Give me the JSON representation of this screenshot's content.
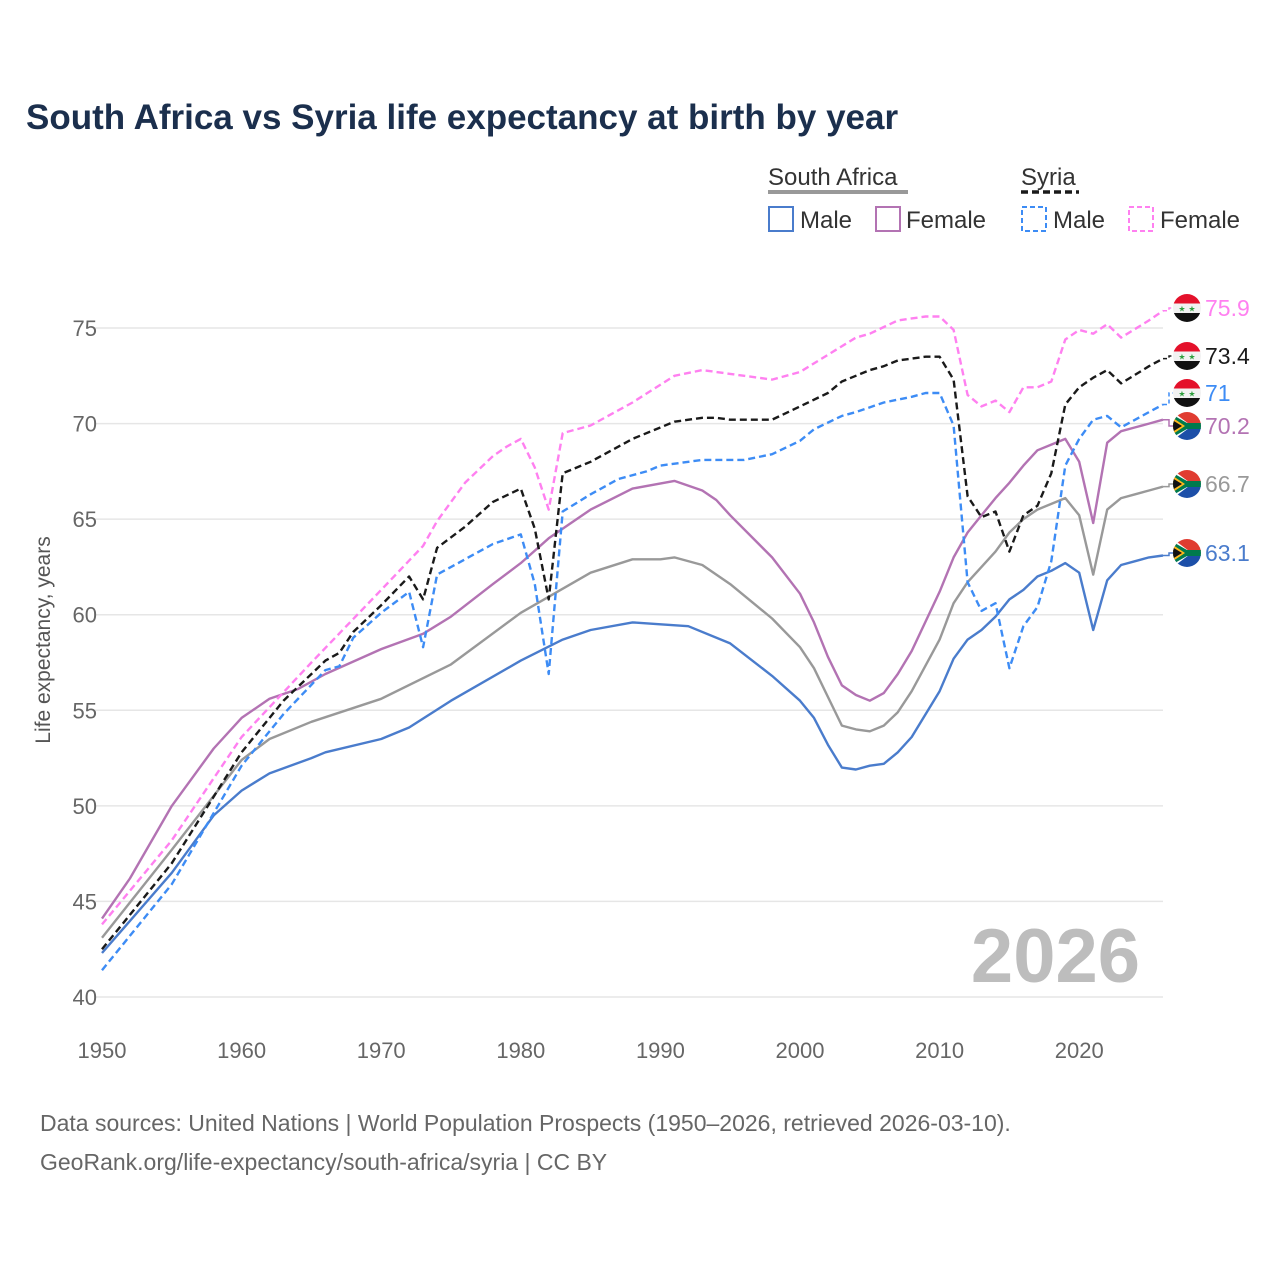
{
  "title": "South Africa vs Syria life expectancy at birth by year",
  "legend": {
    "groups": [
      {
        "label": "South Africa",
        "items": [
          "Male",
          "Female"
        ]
      },
      {
        "label": "Syria",
        "items": [
          "Male",
          "Female"
        ]
      }
    ]
  },
  "watermark_year": "2026",
  "source_line1": "Data sources: United Nations | World Population Prospects (1950–2026, retrieved 2026-03-10).",
  "source_line2": "GeoRank.org/life-expectancy/south-africa/syria | CC BY",
  "chart_data": {
    "type": "line",
    "title": "South Africa vs Syria life expectancy at birth by year",
    "xlabel": "",
    "ylabel": "Life expectancy, years",
    "xlim": [
      1950,
      2026
    ],
    "ylim": [
      40,
      77
    ],
    "x_ticks": [
      "1950",
      "1960",
      "1970",
      "1980",
      "1990",
      "2000",
      "2010",
      "2020"
    ],
    "y_ticks": [
      "40",
      "45",
      "50",
      "55",
      "60",
      "65",
      "70",
      "75"
    ],
    "grid": true,
    "legend_position": "top-right",
    "series": [
      {
        "name": "Syria Female",
        "country": "Syria",
        "color": "#ff80f0",
        "dashed": true,
        "end_label": "75.9",
        "points": [
          [
            1950,
            43.8
          ],
          [
            1955,
            48.2
          ],
          [
            1960,
            53.6
          ],
          [
            1965,
            57.5
          ],
          [
            1970,
            61.3
          ],
          [
            1973,
            63.6
          ],
          [
            1974,
            64.9
          ],
          [
            1976,
            66.9
          ],
          [
            1978,
            68.3
          ],
          [
            1979,
            68.8
          ],
          [
            1980,
            69.2
          ],
          [
            1981,
            67.7
          ],
          [
            1982,
            65.5
          ],
          [
            1983,
            69.5
          ],
          [
            1985,
            69.9
          ],
          [
            1988,
            71.1
          ],
          [
            1991,
            72.5
          ],
          [
            1993,
            72.8
          ],
          [
            1995,
            72.6
          ],
          [
            1998,
            72.3
          ],
          [
            2000,
            72.7
          ],
          [
            2002,
            73.6
          ],
          [
            2004,
            74.5
          ],
          [
            2005,
            74.7
          ],
          [
            2007,
            75.4
          ],
          [
            2009,
            75.6
          ],
          [
            2010,
            75.6
          ],
          [
            2011,
            74.9
          ],
          [
            2012,
            71.5
          ],
          [
            2013,
            70.9
          ],
          [
            2014,
            71.2
          ],
          [
            2015,
            70.6
          ],
          [
            2016,
            71.9
          ],
          [
            2017,
            71.9
          ],
          [
            2018,
            72.2
          ],
          [
            2019,
            74.4
          ],
          [
            2020,
            74.9
          ],
          [
            2021,
            74.7
          ],
          [
            2022,
            75.2
          ],
          [
            2023,
            74.5
          ],
          [
            2025,
            75.4
          ],
          [
            2026,
            75.9
          ]
        ]
      },
      {
        "name": "Syria Total",
        "country": "Syria",
        "color": "#1a1a1a",
        "dashed": true,
        "end_label": "73.4",
        "points": [
          [
            1950,
            42.5
          ],
          [
            1955,
            47.0
          ],
          [
            1960,
            52.8
          ],
          [
            1963,
            55.5
          ],
          [
            1966,
            57.6
          ],
          [
            1967,
            58.0
          ],
          [
            1968,
            59.1
          ],
          [
            1970,
            60.5
          ],
          [
            1972,
            62.0
          ],
          [
            1973,
            60.8
          ],
          [
            1974,
            63.5
          ],
          [
            1976,
            64.6
          ],
          [
            1978,
            65.9
          ],
          [
            1980,
            66.6
          ],
          [
            1981,
            64.5
          ],
          [
            1982,
            60.8
          ],
          [
            1983,
            67.4
          ],
          [
            1985,
            68.0
          ],
          [
            1988,
            69.2
          ],
          [
            1991,
            70.1
          ],
          [
            1993,
            70.3
          ],
          [
            1994,
            70.3
          ],
          [
            1995,
            70.2
          ],
          [
            1998,
            70.2
          ],
          [
            2000,
            70.9
          ],
          [
            2002,
            71.6
          ],
          [
            2003,
            72.2
          ],
          [
            2005,
            72.8
          ],
          [
            2006,
            73.0
          ],
          [
            2007,
            73.3
          ],
          [
            2009,
            73.5
          ],
          [
            2010,
            73.5
          ],
          [
            2011,
            72.3
          ],
          [
            2012,
            66.2
          ],
          [
            2013,
            65.1
          ],
          [
            2014,
            65.4
          ],
          [
            2015,
            63.3
          ],
          [
            2016,
            65.2
          ],
          [
            2017,
            65.7
          ],
          [
            2018,
            67.4
          ],
          [
            2019,
            71.0
          ],
          [
            2020,
            71.9
          ],
          [
            2021,
            72.4
          ],
          [
            2022,
            72.8
          ],
          [
            2023,
            72.1
          ],
          [
            2025,
            73.0
          ],
          [
            2026,
            73.4
          ]
        ]
      },
      {
        "name": "Syria Male",
        "country": "Syria",
        "color": "#3d8cf5",
        "dashed": true,
        "end_label": "71",
        "points": [
          [
            1950,
            41.4
          ],
          [
            1955,
            45.9
          ],
          [
            1960,
            52.1
          ],
          [
            1963,
            54.8
          ],
          [
            1966,
            57.1
          ],
          [
            1967,
            57.3
          ],
          [
            1968,
            58.8
          ],
          [
            1970,
            60.1
          ],
          [
            1972,
            61.2
          ],
          [
            1973,
            58.3
          ],
          [
            1974,
            62.1
          ],
          [
            1976,
            62.9
          ],
          [
            1978,
            63.7
          ],
          [
            1980,
            64.2
          ],
          [
            1981,
            61.6
          ],
          [
            1982,
            56.9
          ],
          [
            1983,
            65.4
          ],
          [
            1985,
            66.3
          ],
          [
            1987,
            67.1
          ],
          [
            1989,
            67.5
          ],
          [
            1990,
            67.8
          ],
          [
            1993,
            68.1
          ],
          [
            1996,
            68.1
          ],
          [
            1998,
            68.4
          ],
          [
            2000,
            69.1
          ],
          [
            2001,
            69.7
          ],
          [
            2003,
            70.4
          ],
          [
            2004,
            70.6
          ],
          [
            2006,
            71.1
          ],
          [
            2008,
            71.4
          ],
          [
            2009,
            71.6
          ],
          [
            2010,
            71.6
          ],
          [
            2011,
            69.9
          ],
          [
            2012,
            61.7
          ],
          [
            2013,
            60.2
          ],
          [
            2014,
            60.6
          ],
          [
            2015,
            57.2
          ],
          [
            2016,
            59.4
          ],
          [
            2017,
            60.4
          ],
          [
            2018,
            62.8
          ],
          [
            2019,
            67.8
          ],
          [
            2020,
            69.2
          ],
          [
            2021,
            70.2
          ],
          [
            2022,
            70.4
          ],
          [
            2023,
            69.8
          ],
          [
            2025,
            70.6
          ],
          [
            2026,
            71.0
          ]
        ]
      },
      {
        "name": "South Africa Female",
        "country": "South Africa",
        "color": "#b373b3",
        "dashed": false,
        "end_label": "70.2",
        "points": [
          [
            1950,
            44.1
          ],
          [
            1952,
            46.2
          ],
          [
            1955,
            50.0
          ],
          [
            1958,
            53.0
          ],
          [
            1960,
            54.6
          ],
          [
            1962,
            55.6
          ],
          [
            1964,
            56.1
          ],
          [
            1966,
            56.9
          ],
          [
            1970,
            58.2
          ],
          [
            1973,
            59.0
          ],
          [
            1975,
            59.9
          ],
          [
            1978,
            61.6
          ],
          [
            1980,
            62.7
          ],
          [
            1982,
            64.0
          ],
          [
            1985,
            65.5
          ],
          [
            1988,
            66.6
          ],
          [
            1991,
            67.0
          ],
          [
            1993,
            66.5
          ],
          [
            1994,
            66.0
          ],
          [
            1995,
            65.2
          ],
          [
            1998,
            63.0
          ],
          [
            2000,
            61.1
          ],
          [
            2001,
            59.6
          ],
          [
            2002,
            57.8
          ],
          [
            2003,
            56.3
          ],
          [
            2004,
            55.8
          ],
          [
            2005,
            55.5
          ],
          [
            2006,
            55.9
          ],
          [
            2007,
            56.9
          ],
          [
            2008,
            58.1
          ],
          [
            2010,
            61.2
          ],
          [
            2011,
            63.0
          ],
          [
            2012,
            64.3
          ],
          [
            2013,
            65.2
          ],
          [
            2014,
            66.1
          ],
          [
            2015,
            66.9
          ],
          [
            2016,
            67.8
          ],
          [
            2017,
            68.6
          ],
          [
            2018,
            68.9
          ],
          [
            2019,
            69.2
          ],
          [
            2020,
            68.0
          ],
          [
            2021,
            64.8
          ],
          [
            2022,
            69.0
          ],
          [
            2023,
            69.6
          ],
          [
            2024,
            69.8
          ],
          [
            2025,
            70.0
          ],
          [
            2026,
            70.2
          ]
        ]
      },
      {
        "name": "South Africa Total",
        "country": "South Africa",
        "color": "#999999",
        "dashed": false,
        "end_label": "66.7",
        "points": [
          [
            1950,
            43.1
          ],
          [
            1955,
            47.7
          ],
          [
            1960,
            52.4
          ],
          [
            1962,
            53.5
          ],
          [
            1965,
            54.4
          ],
          [
            1970,
            55.6
          ],
          [
            1975,
            57.4
          ],
          [
            1980,
            60.1
          ],
          [
            1985,
            62.2
          ],
          [
            1988,
            62.9
          ],
          [
            1990,
            62.9
          ],
          [
            1991,
            63.0
          ],
          [
            1993,
            62.6
          ],
          [
            1995,
            61.6
          ],
          [
            1998,
            59.8
          ],
          [
            2000,
            58.3
          ],
          [
            2001,
            57.2
          ],
          [
            2002,
            55.7
          ],
          [
            2003,
            54.2
          ],
          [
            2004,
            54.0
          ],
          [
            2005,
            53.9
          ],
          [
            2006,
            54.2
          ],
          [
            2007,
            54.9
          ],
          [
            2008,
            56.0
          ],
          [
            2010,
            58.7
          ],
          [
            2011,
            60.6
          ],
          [
            2012,
            61.7
          ],
          [
            2013,
            62.5
          ],
          [
            2014,
            63.3
          ],
          [
            2015,
            64.3
          ],
          [
            2016,
            65.0
          ],
          [
            2017,
            65.5
          ],
          [
            2018,
            65.8
          ],
          [
            2019,
            66.1
          ],
          [
            2020,
            65.2
          ],
          [
            2021,
            62.1
          ],
          [
            2022,
            65.5
          ],
          [
            2023,
            66.1
          ],
          [
            2024,
            66.3
          ],
          [
            2025,
            66.5
          ],
          [
            2026,
            66.7
          ]
        ]
      },
      {
        "name": "South Africa Male",
        "country": "South Africa",
        "color": "#4a7ccc",
        "dashed": false,
        "end_label": "63.1",
        "points": [
          [
            1950,
            42.3
          ],
          [
            1955,
            46.5
          ],
          [
            1958,
            49.5
          ],
          [
            1960,
            50.8
          ],
          [
            1962,
            51.7
          ],
          [
            1965,
            52.5
          ],
          [
            1966,
            52.8
          ],
          [
            1970,
            53.5
          ],
          [
            1972,
            54.1
          ],
          [
            1975,
            55.5
          ],
          [
            1980,
            57.6
          ],
          [
            1983,
            58.7
          ],
          [
            1985,
            59.2
          ],
          [
            1988,
            59.6
          ],
          [
            1990,
            59.5
          ],
          [
            1992,
            59.4
          ],
          [
            1995,
            58.5
          ],
          [
            1998,
            56.8
          ],
          [
            2000,
            55.5
          ],
          [
            2001,
            54.6
          ],
          [
            2002,
            53.2
          ],
          [
            2003,
            52.0
          ],
          [
            2004,
            51.9
          ],
          [
            2005,
            52.1
          ],
          [
            2006,
            52.2
          ],
          [
            2007,
            52.8
          ],
          [
            2008,
            53.6
          ],
          [
            2010,
            56.0
          ],
          [
            2011,
            57.7
          ],
          [
            2012,
            58.7
          ],
          [
            2013,
            59.2
          ],
          [
            2014,
            59.9
          ],
          [
            2015,
            60.8
          ],
          [
            2016,
            61.3
          ],
          [
            2017,
            62.0
          ],
          [
            2018,
            62.3
          ],
          [
            2019,
            62.7
          ],
          [
            2020,
            62.2
          ],
          [
            2021,
            59.2
          ],
          [
            2022,
            61.8
          ],
          [
            2023,
            62.6
          ],
          [
            2024,
            62.8
          ],
          [
            2025,
            63.0
          ],
          [
            2026,
            63.1
          ]
        ]
      }
    ]
  }
}
